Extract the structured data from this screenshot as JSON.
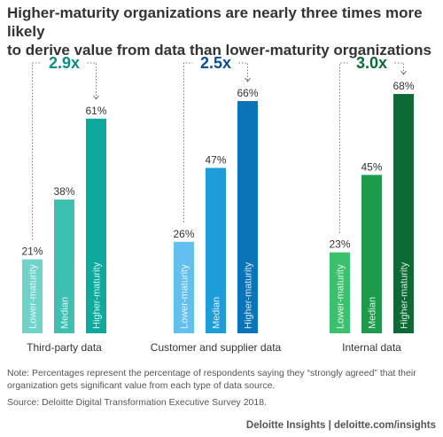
{
  "title_lines": [
    "Higher-maturity organizations are nearly three times more likely",
    "to derive value from data than lower-maturity organizations"
  ],
  "chart_data": {
    "type": "bar",
    "title": "Higher-maturity organizations are nearly three times more likely to derive value from data than lower-maturity organizations",
    "ylim": [
      0,
      75
    ],
    "groups": [
      {
        "name": "Third-party data",
        "ratio": "2.9x",
        "bars": [
          {
            "label": "Lower-maturity",
            "value": 21,
            "value_label": "21%",
            "color": "#6fd3c9"
          },
          {
            "label": "Median",
            "value": 38,
            "value_label": "38%",
            "color": "#3dbfb2"
          },
          {
            "label": "Higher-maturity",
            "value": 61,
            "value_label": "61%",
            "color": "#0ea89c"
          }
        ],
        "ratio_color": "#0d8c82"
      },
      {
        "name": "Customer and supplier data",
        "ratio": "2.5x",
        "bars": [
          {
            "label": "Lower-maturity",
            "value": 26,
            "value_label": "26%",
            "color": "#62bff0"
          },
          {
            "label": "Median",
            "value": 47,
            "value_label": "47%",
            "color": "#1e9ed8"
          },
          {
            "label": "Higher-maturity",
            "value": 66,
            "value_label": "66%",
            "color": "#0b73b8"
          }
        ],
        "ratio_color": "#0b4f8a"
      },
      {
        "name": "Internal data",
        "ratio": "3.0x",
        "bars": [
          {
            "label": "Lower-maturity",
            "value": 23,
            "value_label": "23%",
            "color": "#3cc06e"
          },
          {
            "label": "Median",
            "value": 45,
            "value_label": "45%",
            "color": "#1c9b4b"
          },
          {
            "label": "Higher-maturity",
            "value": 68,
            "value_label": "68%",
            "color": "#0c6b34"
          }
        ],
        "ratio_color": "#0c6b34"
      }
    ],
    "grid": false,
    "legend": "none"
  },
  "note": "Note: Percentages represent the percentage of respondents saying they “strongly agreed” that their organization gets significant value from each type of data source.",
  "source": "Source: Deloitte Digital Transformation Executive Survey 2018.",
  "footer": "Deloitte Insights | deloitte.com/insights"
}
